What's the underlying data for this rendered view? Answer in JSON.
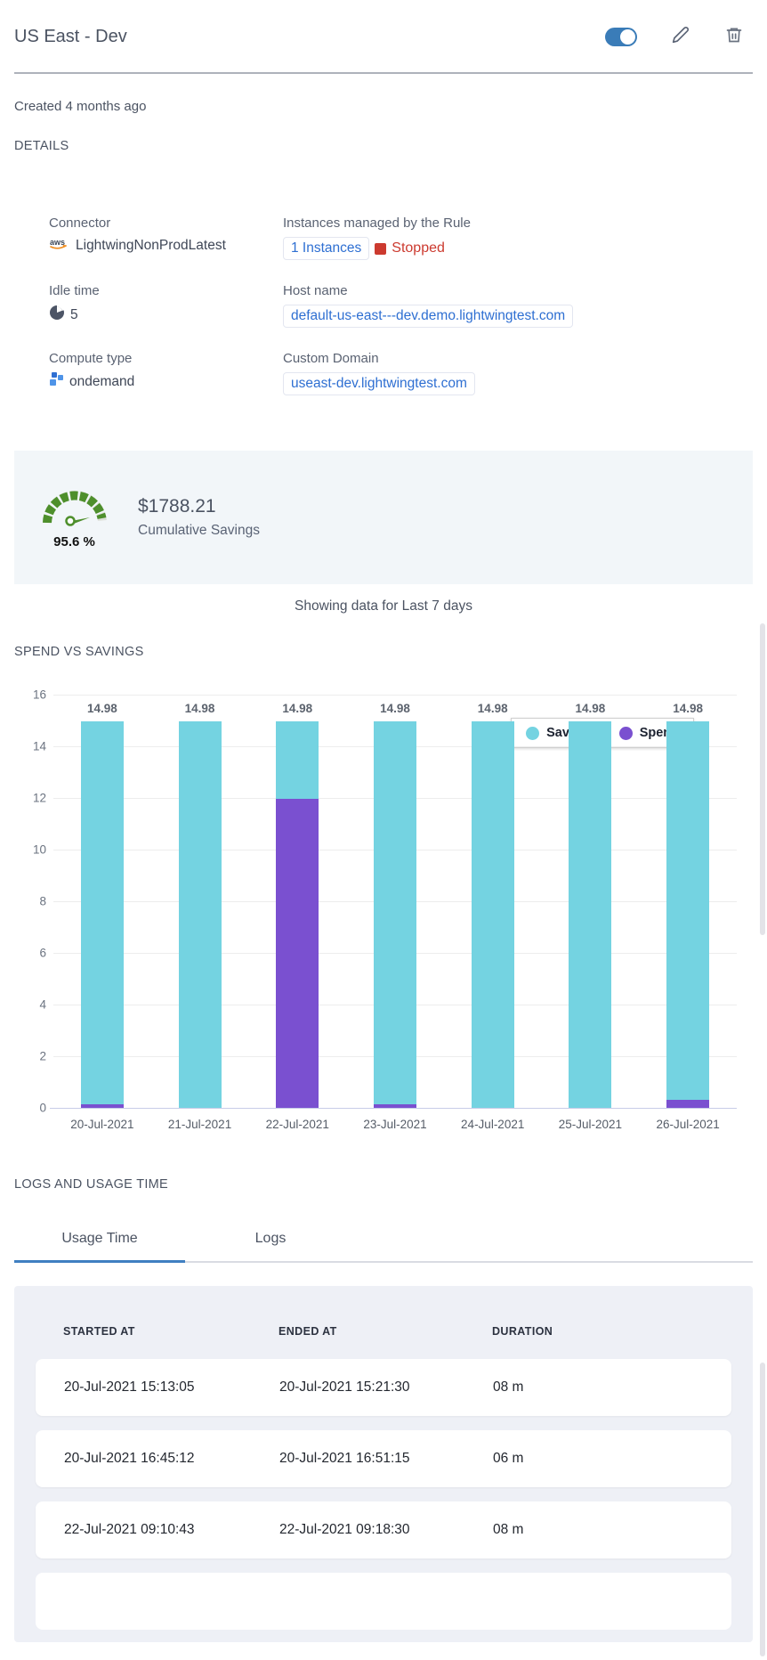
{
  "header": {
    "title": "US East - Dev",
    "toggle_state": "on"
  },
  "created": "Created 4 months ago",
  "details": {
    "section_title": "DETAILS",
    "connector": {
      "label": "Connector",
      "value": "LightwingNonProdLatest"
    },
    "instances": {
      "label": "Instances managed by the Rule",
      "link": "1 Instances",
      "status": "Stopped"
    },
    "idle_time": {
      "label": "Idle time",
      "value": "5"
    },
    "host_name": {
      "label": "Host name",
      "value": "default-us-east---dev.demo.lightwingtest.com"
    },
    "compute_type": {
      "label": "Compute type",
      "value": "ondemand"
    },
    "custom_domain": {
      "label": "Custom Domain",
      "value": "useast-dev.lightwingtest.com"
    }
  },
  "savings": {
    "percent": "95.6 %",
    "amount": "$1788.21",
    "caption": "Cumulative Savings"
  },
  "period_note": "Showing data for Last 7 days",
  "chart_section_title": "SPEND VS SAVINGS",
  "chart_data": {
    "type": "bar",
    "stacked": true,
    "categories": [
      "20-Jul-2021",
      "21-Jul-2021",
      "22-Jul-2021",
      "23-Jul-2021",
      "24-Jul-2021",
      "25-Jul-2021",
      "26-Jul-2021"
    ],
    "series": [
      {
        "name": "Spend",
        "color": "#7a50d0",
        "values": [
          0.15,
          0,
          11.95,
          0.15,
          0,
          0,
          0.3
        ]
      },
      {
        "name": "Savings",
        "color": "#74d3e1",
        "values": [
          14.83,
          14.98,
          3.03,
          14.83,
          14.98,
          14.98,
          14.68
        ]
      }
    ],
    "bar_total_labels": [
      "14.98",
      "14.98",
      "14.98",
      "14.98",
      "14.98",
      "14.98",
      "14.98"
    ],
    "title": "SPEND VS SAVINGS",
    "xlabel": "",
    "ylabel": "",
    "ylim": [
      0,
      16
    ],
    "ytick_step": 2,
    "grid": true,
    "legend_position": "top-right",
    "legend_order": [
      "Savings",
      "Spend"
    ]
  },
  "logs": {
    "section_title": "LOGS AND USAGE TIME",
    "tabs": [
      {
        "label": "Usage Time",
        "active": true
      },
      {
        "label": "Logs",
        "active": false
      }
    ],
    "table": {
      "columns": [
        "STARTED AT",
        "ENDED AT",
        "DURATION"
      ],
      "rows": [
        [
          "20-Jul-2021 15:13:05",
          "20-Jul-2021 15:21:30",
          "08 m"
        ],
        [
          "20-Jul-2021 16:45:12",
          "20-Jul-2021 16:51:15",
          "06 m"
        ],
        [
          "22-Jul-2021 09:10:43",
          "22-Jul-2021 09:18:30",
          "08 m"
        ]
      ]
    }
  },
  "icons": {
    "toggle": "toggle-on-icon",
    "edit": "pencil-icon",
    "delete": "trash-icon",
    "connector": "aws-icon",
    "idle": "clock-icon",
    "compute": "squares-icon",
    "stopped": "stop-square-icon",
    "gauge": "savings-gauge-icon"
  },
  "colors": {
    "accent_blue": "#3a7cb8",
    "link_blue": "#2e6fd2",
    "danger_red": "#cc3a2f",
    "savings_teal": "#74d3e1",
    "spend_purple": "#7a50d0",
    "gauge_green": "#4e8f2c",
    "panel_bg": "#f2f6f9",
    "table_panel_bg": "#eef0f6"
  }
}
